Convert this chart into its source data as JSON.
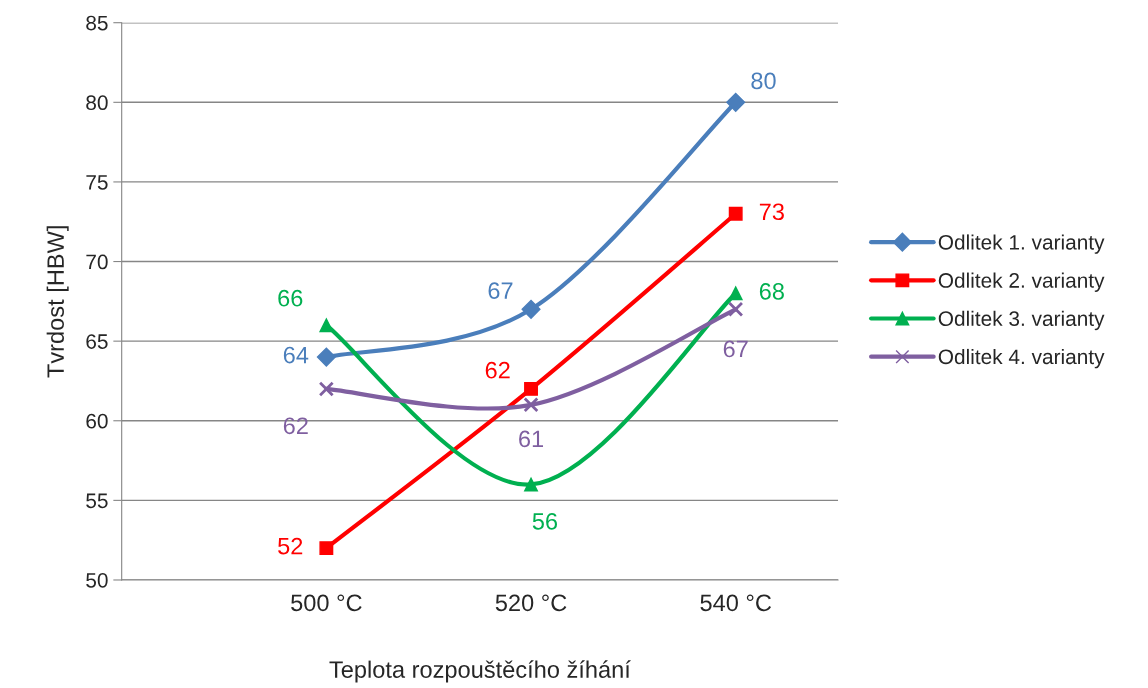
{
  "chart_data": {
    "type": "line",
    "xlabel": "Teplota rozpouštěcího žíhání",
    "ylabel": "Tvrdost [HBW]",
    "categories": [
      null,
      "500 °C",
      "520 °C",
      "540 °C"
    ],
    "ylim": [
      50,
      85
    ],
    "yticks": [
      50,
      55,
      60,
      65,
      70,
      75,
      80,
      85
    ],
    "grid": "y",
    "legend": "right",
    "data_labels": true,
    "series": [
      {
        "name": "Odlitek 1. varianty",
        "color": "#4a7ebb",
        "marker": "diamond",
        "values": [
          null,
          64,
          67,
          80
        ]
      },
      {
        "name": "Odlitek 2. varianty",
        "color": "#ff0000",
        "marker": "square",
        "values": [
          null,
          52,
          62,
          73
        ]
      },
      {
        "name": "Odlitek 3. varianty",
        "color": "#00b050",
        "marker": "triangle",
        "values": [
          null,
          66,
          56,
          68
        ]
      },
      {
        "name": "Odlitek 4. varianty",
        "color": "#7f5fa0",
        "marker": "cross",
        "values": [
          null,
          62,
          61,
          67
        ]
      }
    ]
  }
}
